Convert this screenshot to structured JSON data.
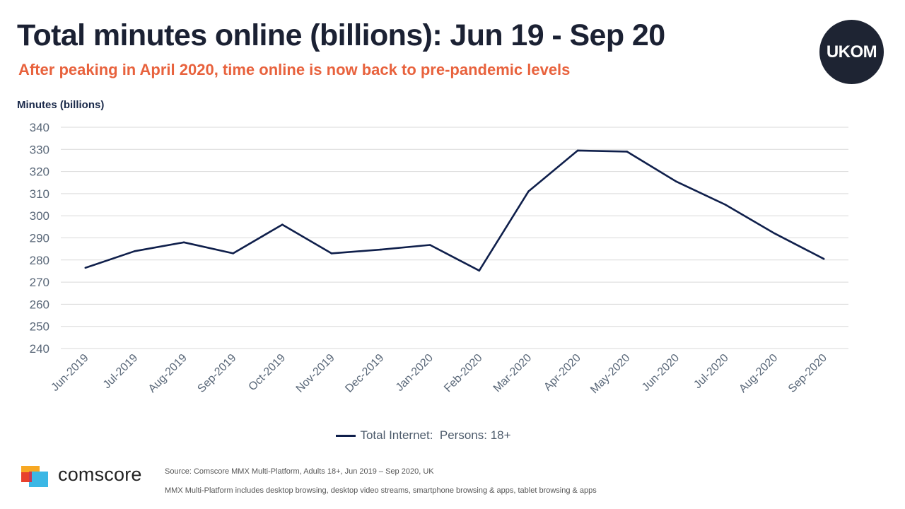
{
  "header": {
    "title": "Total minutes online (billions): Jun 19 - Sep 20",
    "subtitle": "After peaking in April 2020, time online is now back to pre-pandemic levels",
    "logo_text": "UKOM"
  },
  "footer": {
    "brand": "comscore",
    "source_note": "Source: Comscore MMX Multi-Platform, Adults 18+, Jun 2019 – Sep 2020, UK",
    "definition_note": "MMX  Multi-Platform includes desktop browsing, desktop video streams, smartphone browsing & apps, tablet browsing & apps"
  },
  "colors": {
    "title": "#1b2133",
    "subtitle": "#e8623d",
    "series": "#0f1f4b",
    "grid": "#d9d9d9",
    "ticks": "#596778"
  },
  "chart_data": {
    "type": "line",
    "ylabel": "Minutes (billions)",
    "xlabel": "",
    "ylim": [
      240,
      340
    ],
    "yticks": [
      240,
      250,
      260,
      270,
      280,
      290,
      300,
      310,
      320,
      330,
      340
    ],
    "grid": true,
    "legend_position": "bottom-center",
    "categories": [
      "Jun-2019",
      "Jul-2019",
      "Aug-2019",
      "Sep-2019",
      "Oct-2019",
      "Nov-2019",
      "Dec-2019",
      "Jan-2020",
      "Feb-2020",
      "Mar-2020",
      "Apr-2020",
      "May-2020",
      "Jun-2020",
      "Jul-2020",
      "Aug-2020",
      "Sep-2020"
    ],
    "series": [
      {
        "name": "Total Internet:  Persons: 18+",
        "values": [
          276.5,
          284,
          288,
          283,
          296,
          283,
          284.7,
          286.8,
          275.2,
          311,
          329.5,
          329,
          315.5,
          305,
          292,
          280.5
        ]
      }
    ]
  }
}
